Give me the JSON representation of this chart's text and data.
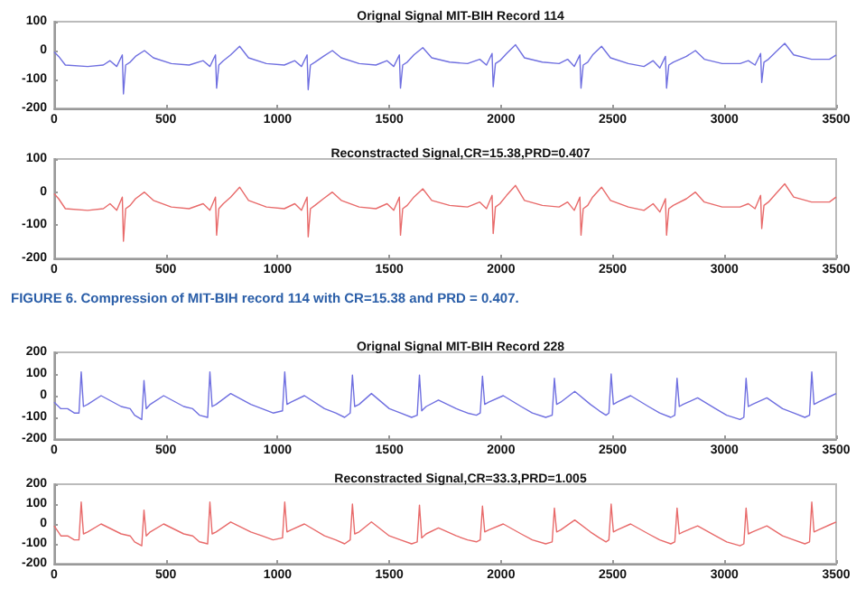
{
  "chart_data": [
    {
      "type": "line",
      "title": "Orignal Signal MIT-BIH Record 114",
      "xlim": [
        0,
        3500
      ],
      "xticks": [
        0,
        500,
        1000,
        1500,
        2000,
        2500,
        3000,
        3500
      ],
      "ylim": [
        -200,
        100
      ],
      "yticks": [
        -200,
        -100,
        0,
        100
      ],
      "grid": false,
      "x": [
        0,
        20,
        50,
        150,
        220,
        250,
        280,
        305,
        310,
        320,
        340,
        364,
        404,
        444,
        524,
        604,
        667,
        697,
        722,
        727,
        737,
        757,
        790,
        830,
        870,
        950,
        1030,
        1077,
        1107,
        1132,
        1137,
        1147,
        1167,
        1205,
        1245,
        1285,
        1365,
        1440,
        1490,
        1520,
        1545,
        1550,
        1560,
        1580,
        1610,
        1650,
        1690,
        1770,
        1850,
        1905,
        1935,
        1960,
        1965,
        1975,
        1995,
        2025,
        2065,
        2105,
        2185,
        2260,
        2298,
        2328,
        2353,
        2358,
        2368,
        2388,
        2410,
        2450,
        2490,
        2570,
        2640,
        2681,
        2711,
        2736,
        2741,
        2751,
        2771,
        2830,
        2870,
        2910,
        2990,
        3070,
        3107,
        3137,
        3162,
        3167,
        3177,
        3197,
        3230,
        3270,
        3310,
        3390,
        3470,
        3500
      ],
      "series": [
        {
          "color": "#6f6fe0",
          "values": [
            -5,
            -20,
            -50,
            -55,
            -50,
            -35,
            -55,
            -15,
            -150,
            -50,
            -40,
            -20,
            0,
            -25,
            -45,
            -50,
            -35,
            -55,
            -15,
            -130,
            -50,
            -35,
            -15,
            15,
            -25,
            -45,
            -50,
            -35,
            -55,
            -15,
            -135,
            -50,
            -40,
            -20,
            0,
            -25,
            -45,
            -50,
            -35,
            -55,
            -15,
            -130,
            -50,
            -40,
            -15,
            10,
            -25,
            -40,
            -45,
            -30,
            -50,
            -10,
            -125,
            -45,
            -35,
            -10,
            20,
            -25,
            -40,
            -45,
            -30,
            -55,
            -15,
            -130,
            -50,
            -40,
            -15,
            15,
            -25,
            -45,
            -55,
            -35,
            -60,
            -20,
            -130,
            -50,
            -40,
            -20,
            0,
            -30,
            -45,
            -45,
            -35,
            -50,
            -10,
            -110,
            -40,
            -30,
            -5,
            25,
            -15,
            -30,
            -30,
            -15
          ]
        }
      ]
    },
    {
      "type": "line",
      "title": "Reconstracted Signal,CR=15.38,PRD=0.407",
      "annotations": [
        "FIGURE 6. Compression of MIT-BIH record 114 with CR=15.38 and PRD = 0.407."
      ],
      "xlim": [
        0,
        3500
      ],
      "xticks": [
        0,
        500,
        1000,
        1500,
        2000,
        2500,
        3000,
        3500
      ],
      "ylim": [
        -200,
        100
      ],
      "yticks": [
        -200,
        -100,
        0,
        100
      ],
      "grid": false,
      "x": [
        0,
        20,
        50,
        150,
        220,
        250,
        280,
        305,
        310,
        320,
        340,
        364,
        404,
        444,
        524,
        604,
        667,
        697,
        722,
        727,
        737,
        757,
        790,
        830,
        870,
        950,
        1030,
        1077,
        1107,
        1132,
        1137,
        1147,
        1167,
        1205,
        1245,
        1285,
        1365,
        1440,
        1490,
        1520,
        1545,
        1550,
        1560,
        1580,
        1610,
        1650,
        1690,
        1770,
        1850,
        1905,
        1935,
        1960,
        1965,
        1975,
        1995,
        2025,
        2065,
        2105,
        2185,
        2260,
        2298,
        2328,
        2353,
        2358,
        2368,
        2388,
        2410,
        2450,
        2490,
        2570,
        2640,
        2681,
        2711,
        2736,
        2741,
        2751,
        2771,
        2830,
        2870,
        2910,
        2990,
        3070,
        3107,
        3137,
        3162,
        3167,
        3177,
        3197,
        3230,
        3270,
        3310,
        3390,
        3470,
        3500
      ],
      "series": [
        {
          "color": "#e86a6a",
          "values": [
            -5,
            -20,
            -50,
            -55,
            -50,
            -35,
            -55,
            -15,
            -148,
            -50,
            -40,
            -20,
            0,
            -25,
            -45,
            -50,
            -35,
            -55,
            -15,
            -130,
            -50,
            -35,
            -15,
            15,
            -25,
            -45,
            -50,
            -35,
            -55,
            -15,
            -135,
            -50,
            -40,
            -20,
            0,
            -25,
            -45,
            -50,
            -35,
            -55,
            -15,
            -130,
            -50,
            -40,
            -15,
            10,
            -25,
            -40,
            -45,
            -30,
            -50,
            -10,
            -125,
            -45,
            -35,
            -10,
            20,
            -25,
            -40,
            -45,
            -30,
            -55,
            -15,
            -130,
            -50,
            -40,
            -15,
            15,
            -25,
            -45,
            -55,
            -35,
            -60,
            -20,
            -130,
            -50,
            -40,
            -20,
            0,
            -30,
            -45,
            -45,
            -35,
            -50,
            -10,
            -110,
            -40,
            -30,
            -5,
            25,
            -15,
            -30,
            -30,
            -15
          ]
        }
      ]
    },
    {
      "type": "line",
      "title": "Orignal Signal MIT-BIH Record 228",
      "xlim": [
        0,
        3500
      ],
      "xticks": [
        0,
        500,
        1000,
        1500,
        2000,
        2500,
        3000,
        3500
      ],
      "ylim": [
        -200,
        200
      ],
      "yticks": [
        -200,
        -100,
        0,
        100,
        200
      ],
      "grid": false,
      "x": [
        0,
        30,
        60,
        90,
        111,
        121,
        131,
        150,
        210,
        300,
        340,
        360,
        392,
        402,
        412,
        430,
        490,
        580,
        620,
        650,
        687,
        697,
        707,
        725,
        790,
        880,
        930,
        980,
        1022,
        1032,
        1042,
        1060,
        1120,
        1210,
        1260,
        1300,
        1325,
        1335,
        1345,
        1365,
        1420,
        1500,
        1550,
        1600,
        1625,
        1635,
        1645,
        1665,
        1720,
        1800,
        1850,
        1890,
        1907,
        1917,
        1927,
        1945,
        2010,
        2090,
        2140,
        2200,
        2229,
        2239,
        2249,
        2267,
        2330,
        2400,
        2440,
        2470,
        2483,
        2493,
        2503,
        2520,
        2580,
        2660,
        2710,
        2760,
        2778,
        2788,
        2798,
        2815,
        2880,
        2960,
        3010,
        3070,
        3087,
        3097,
        3107,
        3125,
        3190,
        3260,
        3310,
        3360,
        3381,
        3391,
        3401,
        3420,
        3480,
        3500
      ],
      "series": [
        {
          "color": "#6f6fe0",
          "values": [
            -30,
            -60,
            -60,
            -80,
            -80,
            110,
            -50,
            -40,
            0,
            -50,
            -60,
            -90,
            -110,
            70,
            -60,
            -40,
            0,
            -50,
            -60,
            -90,
            -100,
            110,
            -50,
            -40,
            10,
            -40,
            -60,
            -80,
            -70,
            110,
            -40,
            -30,
            0,
            -60,
            -80,
            -100,
            -80,
            95,
            -50,
            -40,
            10,
            -60,
            -80,
            -100,
            -90,
            95,
            -70,
            -50,
            -20,
            -60,
            -80,
            -90,
            -80,
            90,
            -40,
            -30,
            0,
            -50,
            -80,
            -100,
            -90,
            80,
            -40,
            -30,
            20,
            -40,
            -70,
            -90,
            -80,
            100,
            -40,
            -30,
            0,
            -50,
            -80,
            -100,
            -90,
            80,
            -50,
            -40,
            -10,
            -60,
            -90,
            -110,
            -100,
            80,
            -50,
            -40,
            -10,
            -60,
            -80,
            -100,
            -90,
            110,
            -40,
            -30,
            0,
            10
          ]
        }
      ]
    },
    {
      "type": "line",
      "title": "Reconstracted Signal,CR=33.3,PRD=1.005",
      "xlim": [
        0,
        3500
      ],
      "xticks": [
        0,
        500,
        1000,
        1500,
        2000,
        2500,
        3000,
        3500
      ],
      "ylim": [
        -200,
        200
      ],
      "yticks": [
        -200,
        -100,
        0,
        100,
        200
      ],
      "grid": false,
      "x": [
        0,
        30,
        60,
        90,
        111,
        121,
        131,
        150,
        210,
        300,
        340,
        360,
        392,
        402,
        412,
        430,
        490,
        580,
        620,
        650,
        687,
        697,
        707,
        725,
        790,
        880,
        930,
        980,
        1022,
        1032,
        1042,
        1060,
        1120,
        1210,
        1260,
        1300,
        1325,
        1335,
        1345,
        1365,
        1420,
        1500,
        1550,
        1600,
        1625,
        1635,
        1645,
        1665,
        1720,
        1800,
        1850,
        1890,
        1907,
        1917,
        1927,
        1945,
        2010,
        2090,
        2140,
        2200,
        2229,
        2239,
        2249,
        2267,
        2330,
        2400,
        2440,
        2470,
        2483,
        2493,
        2503,
        2520,
        2580,
        2660,
        2710,
        2760,
        2778,
        2788,
        2798,
        2815,
        2880,
        2960,
        3010,
        3070,
        3087,
        3097,
        3107,
        3125,
        3190,
        3260,
        3310,
        3360,
        3381,
        3391,
        3401,
        3420,
        3480,
        3500
      ],
      "series": [
        {
          "color": "#e86a6a",
          "values": [
            -10,
            -60,
            -60,
            -80,
            -80,
            110,
            -50,
            -40,
            0,
            -50,
            -60,
            -90,
            -110,
            70,
            -60,
            -40,
            0,
            -50,
            -60,
            -90,
            -100,
            110,
            -50,
            -40,
            10,
            -40,
            -60,
            -80,
            -70,
            110,
            -40,
            -30,
            0,
            -60,
            -80,
            -100,
            -80,
            100,
            -50,
            -40,
            10,
            -60,
            -80,
            -100,
            -90,
            95,
            -70,
            -50,
            -20,
            -60,
            -80,
            -90,
            -80,
            90,
            -40,
            -30,
            0,
            -50,
            -80,
            -100,
            -90,
            80,
            -40,
            -30,
            20,
            -40,
            -70,
            -90,
            -80,
            100,
            -40,
            -30,
            0,
            -50,
            -80,
            -100,
            -90,
            80,
            -50,
            -40,
            -10,
            -60,
            -90,
            -110,
            -100,
            80,
            -50,
            -40,
            -10,
            -60,
            -80,
            -100,
            -90,
            110,
            -40,
            -30,
            0,
            10
          ]
        }
      ]
    }
  ]
}
